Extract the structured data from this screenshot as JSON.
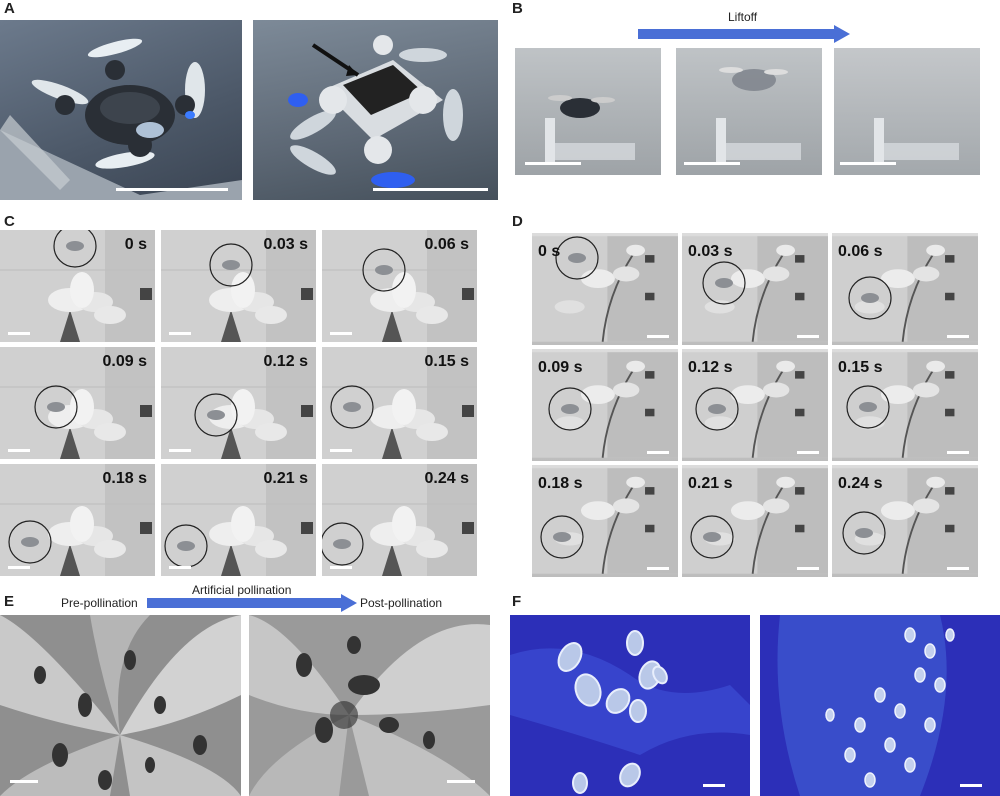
{
  "panels": {
    "A": {
      "label": "A"
    },
    "B": {
      "label": "B",
      "arrow_text": "Liftoff"
    },
    "C": {
      "label": "C",
      "times": [
        "0 s",
        "0.03 s",
        "0.06 s",
        "0.09 s",
        "0.12 s",
        "0.15 s",
        "0.18 s",
        "0.21 s",
        "0.24 s"
      ]
    },
    "D": {
      "label": "D",
      "times": [
        "0 s",
        "0.03 s",
        "0.06 s",
        "0.09 s",
        "0.12 s",
        "0.15 s",
        "0.18 s",
        "0.21 s",
        "0.24 s"
      ]
    },
    "E": {
      "label": "E",
      "pre": "Pre-pollination",
      "arrow_text": "Artificial pollination",
      "post": "Post-pollination"
    },
    "F": {
      "label": "F"
    }
  },
  "colors": {
    "arrow_blue": "#4a6fd6",
    "pollen_bg": "#2c2fb8",
    "scale_bar": "#ffffff"
  }
}
